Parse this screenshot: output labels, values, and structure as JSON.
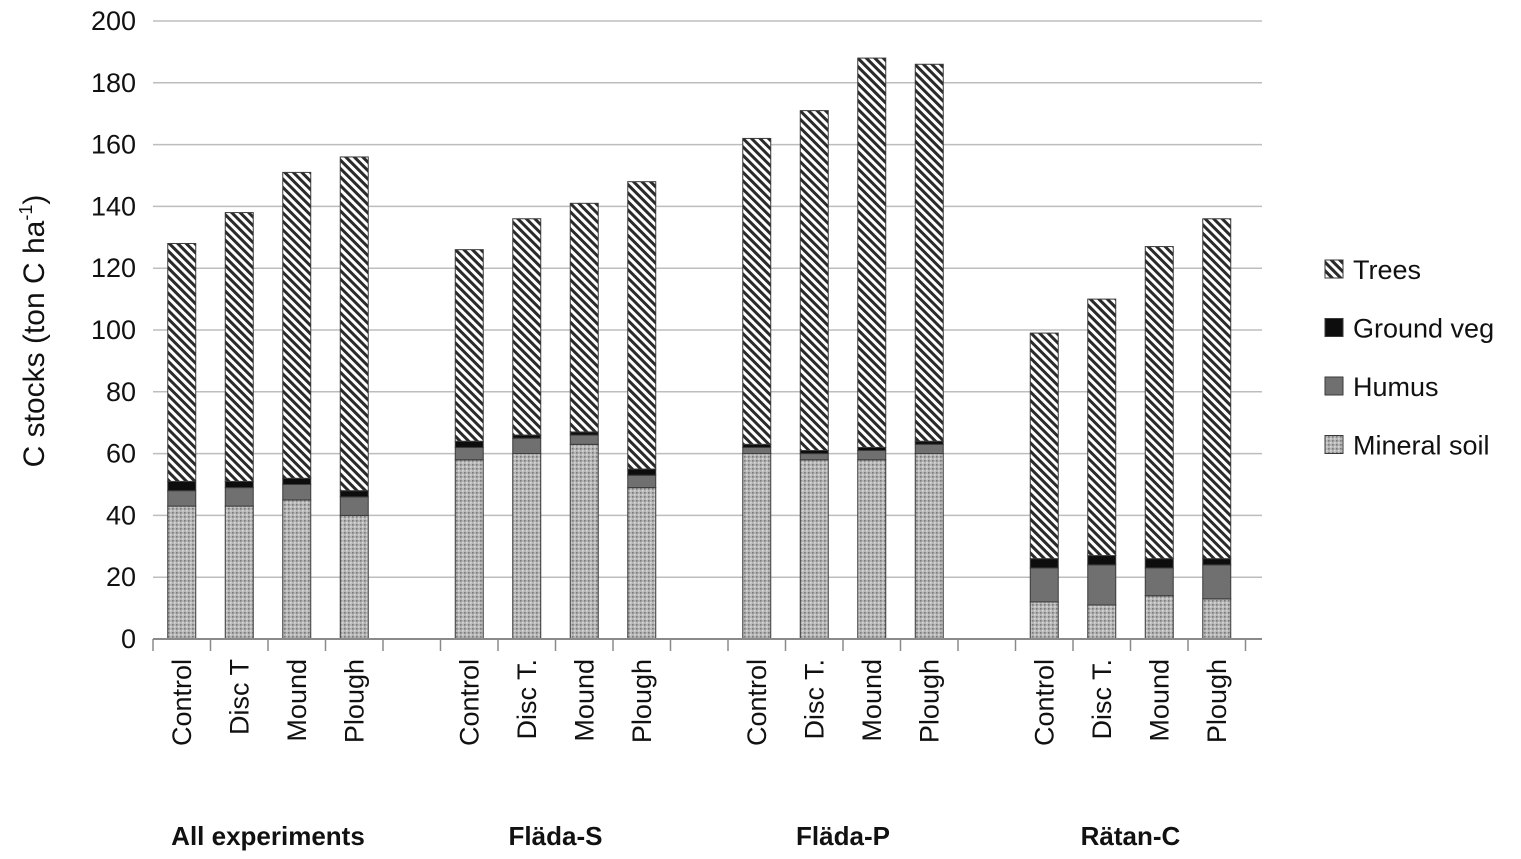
{
  "chart_data": {
    "type": "bar",
    "stacked": true,
    "ylabel": "C stocks (ton C ha⁻¹)",
    "ylabel_parts": {
      "base": "C stocks (ton C ha",
      "sup": "-1",
      "close": ")"
    },
    "ylim": [
      0,
      200
    ],
    "yticks": [
      0,
      20,
      40,
      60,
      80,
      100,
      120,
      140,
      160,
      180,
      200
    ],
    "grid": true,
    "legend_position": "right",
    "groups": [
      {
        "name": "All experiments",
        "categories": [
          "Control",
          "Disc T",
          "Mound",
          "Plough"
        ]
      },
      {
        "name": "Fläda-S",
        "categories": [
          "Control",
          "Disc T.",
          "Mound",
          "Plough"
        ]
      },
      {
        "name": "Fläda-P",
        "categories": [
          "Control",
          "Disc T.",
          "Mound",
          "Plough"
        ]
      },
      {
        "name": "Rätan-C",
        "categories": [
          "Control",
          "Disc T.",
          "Mound",
          "Plough"
        ]
      }
    ],
    "series": [
      {
        "name": "Mineral soil",
        "pattern": "dots",
        "values": [
          43,
          43,
          45,
          40,
          58,
          60,
          63,
          49,
          60,
          58,
          58,
          60,
          12,
          11,
          14,
          13
        ]
      },
      {
        "name": "Humus",
        "pattern": "solid-gray",
        "values": [
          5,
          6,
          5,
          6,
          4,
          5,
          3,
          4,
          2,
          2,
          3,
          3,
          11,
          13,
          9,
          11
        ]
      },
      {
        "name": "Ground veg",
        "pattern": "solid-black",
        "values": [
          3,
          2,
          2,
          2,
          2,
          1,
          1,
          2,
          1,
          1,
          1,
          1,
          3,
          3,
          3,
          2
        ]
      },
      {
        "name": "Trees",
        "pattern": "hatch",
        "values": [
          77,
          87,
          99,
          108,
          62,
          70,
          74,
          93,
          99,
          110,
          126,
          122,
          73,
          83,
          101,
          110
        ]
      }
    ],
    "legend_order": [
      "Trees",
      "Ground veg",
      "Humus",
      "Mineral soil"
    ]
  }
}
